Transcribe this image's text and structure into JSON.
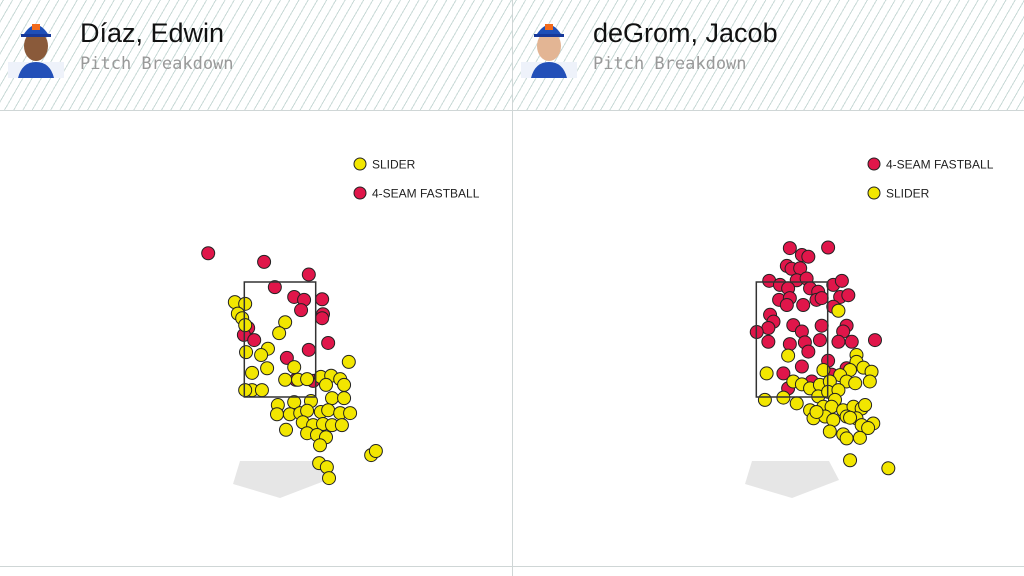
{
  "panels": [
    {
      "player_name": "Díaz, Edwin",
      "subtitle": "Pitch Breakdown",
      "chart_data": {
        "type": "scatter",
        "xlabel": "",
        "ylabel": "",
        "xlim": [
          -2.4,
          2.4
        ],
        "ylim": [
          0,
          4.5
        ],
        "strike_zone": {
          "x": [
            -0.83,
            0.83
          ],
          "z": [
            1.5,
            3.5
          ]
        },
        "legend_order": [
          "SLIDER",
          "4-SEAM FASTBALL"
        ],
        "legend_position": "top-right",
        "series": [
          {
            "name": "4-SEAM FASTBALL",
            "color": "#e0164a",
            "points": [
              [
                -1.67,
                4.0
              ],
              [
                -0.37,
                3.85
              ],
              [
                0.67,
                3.63
              ],
              [
                -0.12,
                3.41
              ],
              [
                0.33,
                3.24
              ],
              [
                0.56,
                3.19
              ],
              [
                0.98,
                3.2
              ],
              [
                0.49,
                3.01
              ],
              [
                1.0,
                2.94
              ],
              [
                0.98,
                2.87
              ],
              [
                -0.74,
                2.7
              ],
              [
                -0.84,
                2.58
              ],
              [
                -0.6,
                2.49
              ],
              [
                0.67,
                2.32
              ],
              [
                1.12,
                2.44
              ],
              [
                0.16,
                2.18
              ],
              [
                0.37,
                1.8
              ],
              [
                0.77,
                1.78
              ]
            ]
          },
          {
            "name": "SLIDER",
            "color": "#f2e600",
            "points": [
              [
                -1.05,
                3.15
              ],
              [
                -0.81,
                3.12
              ],
              [
                -0.98,
                2.95
              ],
              [
                -0.88,
                2.87
              ],
              [
                -0.81,
                2.75
              ],
              [
                0.12,
                2.8
              ],
              [
                -0.02,
                2.61
              ],
              [
                -0.28,
                2.34
              ],
              [
                -0.44,
                2.23
              ],
              [
                -0.79,
                2.28
              ],
              [
                -0.65,
                1.92
              ],
              [
                -0.3,
                2.0
              ],
              [
                0.33,
                2.02
              ],
              [
                1.6,
                2.11
              ],
              [
                -0.65,
                1.62
              ],
              [
                -0.42,
                1.62
              ],
              [
                0.12,
                1.8
              ],
              [
                0.42,
                1.8
              ],
              [
                0.63,
                1.81
              ],
              [
                0.95,
                1.85
              ],
              [
                1.19,
                1.87
              ],
              [
                1.4,
                1.81
              ],
              [
                1.07,
                1.71
              ],
              [
                1.49,
                1.71
              ],
              [
                -0.05,
                1.36
              ],
              [
                0.33,
                1.41
              ],
              [
                0.72,
                1.43
              ],
              [
                1.21,
                1.48
              ],
              [
                1.49,
                1.48
              ],
              [
                -0.07,
                1.2
              ],
              [
                0.23,
                1.2
              ],
              [
                0.47,
                1.22
              ],
              [
                0.63,
                1.26
              ],
              [
                0.95,
                1.24
              ],
              [
                1.12,
                1.27
              ],
              [
                1.4,
                1.22
              ],
              [
                1.63,
                1.22
              ],
              [
                0.53,
                1.06
              ],
              [
                0.77,
                1.01
              ],
              [
                1.0,
                1.03
              ],
              [
                0.14,
                0.93
              ],
              [
                0.63,
                0.87
              ],
              [
                0.86,
                0.84
              ],
              [
                1.21,
                1.01
              ],
              [
                1.44,
                1.01
              ],
              [
                1.07,
                0.8
              ],
              [
                0.93,
                0.66
              ],
              [
                2.12,
                0.49
              ],
              [
                2.23,
                0.56
              ],
              [
                0.91,
                0.35
              ],
              [
                1.09,
                0.28
              ],
              [
                1.14,
                0.09
              ],
              [
                -0.81,
                1.62
              ]
            ]
          }
        ]
      }
    },
    {
      "player_name": "deGrom, Jacob",
      "subtitle": "Pitch Breakdown",
      "chart_data": {
        "type": "scatter",
        "xlabel": "",
        "ylabel": "",
        "xlim": [
          -2.4,
          2.4
        ],
        "ylim": [
          0,
          4.5
        ],
        "strike_zone": {
          "x": [
            -0.83,
            0.83
          ],
          "z": [
            1.5,
            3.5
          ]
        },
        "legend_order": [
          "4-SEAM FASTBALL",
          "SLIDER"
        ],
        "legend_position": "top-right",
        "series": [
          {
            "name": "4-SEAM FASTBALL",
            "color": "#e0164a",
            "points": [
              [
                -0.05,
                4.09
              ],
              [
                0.84,
                4.1
              ],
              [
                0.23,
                3.97
              ],
              [
                0.38,
                3.94
              ],
              [
                -0.12,
                3.78
              ],
              [
                -0.01,
                3.73
              ],
              [
                0.19,
                3.74
              ],
              [
                -0.53,
                3.52
              ],
              [
                -0.28,
                3.45
              ],
              [
                0.11,
                3.53
              ],
              [
                0.34,
                3.56
              ],
              [
                -0.09,
                3.39
              ],
              [
                0.42,
                3.39
              ],
              [
                0.96,
                3.45
              ],
              [
                1.16,
                3.52
              ],
              [
                0.61,
                3.33
              ],
              [
                -0.3,
                3.19
              ],
              [
                -0.05,
                3.22
              ],
              [
                0.57,
                3.19
              ],
              [
                0.69,
                3.22
              ],
              [
                1.12,
                3.24
              ],
              [
                1.31,
                3.27
              ],
              [
                -0.12,
                3.1
              ],
              [
                0.26,
                3.1
              ],
              [
                0.96,
                3.07
              ],
              [
                -0.51,
                2.93
              ],
              [
                -0.43,
                2.81
              ],
              [
                -0.55,
                2.7
              ],
              [
                -0.82,
                2.63
              ],
              [
                0.03,
                2.75
              ],
              [
                0.23,
                2.64
              ],
              [
                0.69,
                2.74
              ],
              [
                1.27,
                2.74
              ],
              [
                1.19,
                2.64
              ],
              [
                1.08,
                2.46
              ],
              [
                1.39,
                2.46
              ],
              [
                1.93,
                2.49
              ],
              [
                -0.55,
                2.46
              ],
              [
                -0.05,
                2.42
              ],
              [
                0.3,
                2.45
              ],
              [
                0.65,
                2.49
              ],
              [
                0.38,
                2.29
              ],
              [
                0.84,
                2.13
              ],
              [
                0.23,
                2.03
              ],
              [
                -0.2,
                1.91
              ],
              [
                0.92,
                1.89
              ],
              [
                0.46,
                1.77
              ],
              [
                -0.09,
                1.65
              ],
              [
                1.27,
                2.0
              ]
            ]
          },
          {
            "name": "SLIDER",
            "color": "#f2e600",
            "points": [
              [
                1.08,
                3.0
              ],
              [
                -0.09,
                2.22
              ],
              [
                -0.59,
                1.91
              ],
              [
                1.5,
                2.23
              ],
              [
                1.5,
                2.11
              ],
              [
                1.66,
                2.01
              ],
              [
                1.85,
                1.94
              ],
              [
                1.35,
                1.97
              ],
              [
                0.73,
                1.97
              ],
              [
                1.12,
                1.88
              ],
              [
                0.03,
                1.77
              ],
              [
                0.23,
                1.72
              ],
              [
                0.42,
                1.65
              ],
              [
                0.65,
                1.71
              ],
              [
                0.88,
                1.77
              ],
              [
                1.27,
                1.77
              ],
              [
                1.47,
                1.74
              ],
              [
                1.81,
                1.77
              ],
              [
                -0.63,
                1.45
              ],
              [
                -0.2,
                1.49
              ],
              [
                0.11,
                1.39
              ],
              [
                0.61,
                1.51
              ],
              [
                0.84,
                1.59
              ],
              [
                1.08,
                1.62
              ],
              [
                1.0,
                1.45
              ],
              [
                0.73,
                1.33
              ],
              [
                0.42,
                1.27
              ],
              [
                0.5,
                1.13
              ],
              [
                0.92,
                1.33
              ],
              [
                1.19,
                1.27
              ],
              [
                1.43,
                1.33
              ],
              [
                1.62,
                1.3
              ],
              [
                1.7,
                1.36
              ],
              [
                0.77,
                1.16
              ],
              [
                0.96,
                1.1
              ],
              [
                1.27,
                1.16
              ],
              [
                1.5,
                1.13
              ],
              [
                1.62,
                1.01
              ],
              [
                1.89,
                1.04
              ],
              [
                1.77,
                0.96
              ],
              [
                0.88,
                0.9
              ],
              [
                1.19,
                0.85
              ],
              [
                1.27,
                0.78
              ],
              [
                1.58,
                0.79
              ],
              [
                1.35,
                0.4
              ],
              [
                2.24,
                0.26
              ],
              [
                0.57,
                1.24
              ],
              [
                1.35,
                1.14
              ]
            ]
          }
        ]
      }
    }
  ]
}
